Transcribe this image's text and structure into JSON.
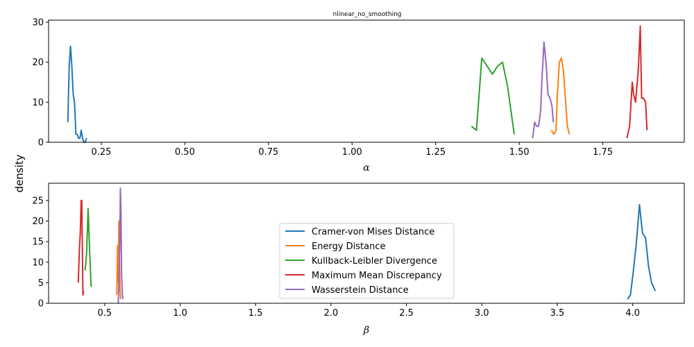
{
  "figure": {
    "title": "nlinear_no_smoothing",
    "ylabel": "density"
  },
  "colors": {
    "Cramer-von Mises Distance": "#1f77b4",
    "Energy Distance": "#ff7f0e",
    "Kullback-Leibler Divergence": "#2ca02c",
    "Maximum Mean Discrepancy": "#d62728",
    "Wasserstein Distance": "#9467bd"
  },
  "legend": {
    "placement": "lower-center of bottom panel",
    "entries": [
      "Cramer-von Mises Distance",
      "Energy Distance",
      "Kullback-Leibler Divergence",
      "Maximum Mean Discrepancy",
      "Wasserstein Distance"
    ]
  },
  "chart_data": [
    {
      "type": "line",
      "xlabel": "α",
      "ylabel": "density",
      "xlim": [
        0.0924,
        1.9936
      ],
      "ylim": [
        0,
        30.5
      ],
      "xticks": [
        0.25,
        0.5,
        0.75,
        1.0,
        1.25,
        1.5,
        1.75
      ],
      "xtick_labels": [
        "0.25",
        "0.50",
        "0.75",
        "1.00",
        "1.25",
        "1.50",
        "1.75"
      ],
      "yticks": [
        0,
        10,
        20,
        30
      ],
      "ytick_labels": [
        "0",
        "10",
        "20",
        "30"
      ],
      "grid": false,
      "series": [
        {
          "name": "Cramer-von Mises Distance",
          "x": [
            0.15,
            0.154,
            0.158,
            0.162,
            0.166,
            0.17,
            0.174,
            0.178,
            0.182,
            0.186,
            0.19,
            0.194,
            0.198,
            0.202,
            0.206
          ],
          "y": [
            5,
            19,
            24,
            19,
            12,
            10,
            2,
            2,
            1,
            1,
            3,
            1,
            0,
            0,
            1
          ]
        },
        {
          "name": "Energy Distance",
          "x": [
            1.596,
            1.604,
            1.61,
            1.614,
            1.62,
            1.626,
            1.632,
            1.638,
            1.644,
            1.65
          ],
          "y": [
            3,
            2,
            3,
            12,
            20,
            21,
            18,
            11,
            4,
            2
          ]
        },
        {
          "name": "Kullback-Leibler Divergence",
          "x": [
            1.357,
            1.372,
            1.388,
            1.404,
            1.42,
            1.435,
            1.45,
            1.465,
            1.485
          ],
          "y": [
            4,
            3,
            21,
            19,
            17,
            19,
            20,
            14,
            2
          ]
        },
        {
          "name": "Maximum Mean Discrepancy",
          "x": [
            1.822,
            1.83,
            1.838,
            1.842,
            1.848,
            1.852,
            1.856,
            1.862,
            1.866,
            1.872,
            1.878,
            1.882
          ],
          "y": [
            1,
            4,
            15,
            12,
            10,
            14,
            18,
            29,
            11,
            11,
            10,
            3
          ]
        },
        {
          "name": "Wasserstein Distance",
          "x": [
            1.54,
            1.546,
            1.552,
            1.558,
            1.564,
            1.568,
            1.574,
            1.58,
            1.586,
            1.592,
            1.598,
            1.602
          ],
          "y": [
            1,
            5,
            4,
            4,
            8,
            16,
            25,
            20,
            12,
            11,
            9,
            5
          ]
        }
      ]
    },
    {
      "type": "line",
      "xlabel": "β",
      "ylabel": "density",
      "xlim": [
        0.128,
        4.342
      ],
      "ylim": [
        0,
        29.2
      ],
      "xticks": [
        0.5,
        1.0,
        1.5,
        2.0,
        2.5,
        3.0,
        3.5,
        4.0
      ],
      "xtick_labels": [
        "0.5",
        "1.0",
        "1.5",
        "2.0",
        "2.5",
        "3.0",
        "3.5",
        "4.0"
      ],
      "yticks": [
        0,
        5,
        10,
        15,
        20,
        25
      ],
      "ytick_labels": [
        "0",
        "5",
        "10",
        "15",
        "20",
        "25"
      ],
      "grid": false,
      "series": [
        {
          "name": "Cramer-von Mises Distance",
          "x": [
            3.965,
            3.985,
            4.005,
            4.025,
            4.045,
            4.065,
            4.085,
            4.105,
            4.125,
            4.15
          ],
          "y": [
            1,
            2,
            8,
            15,
            24,
            17,
            16,
            9,
            5,
            3
          ]
        },
        {
          "name": "Energy Distance",
          "x": [
            0.58,
            0.585,
            0.59,
            0.594,
            0.598,
            0.602,
            0.606
          ],
          "y": [
            2,
            14,
            5,
            20,
            10,
            3,
            1
          ]
        },
        {
          "name": "Kullback-Leibler Divergence",
          "x": [
            0.37,
            0.38,
            0.39,
            0.4,
            0.41
          ],
          "y": [
            8,
            12,
            23,
            13,
            4
          ]
        },
        {
          "name": "Maximum Mean Discrepancy",
          "x": [
            0.325,
            0.332,
            0.338,
            0.344,
            0.348,
            0.352,
            0.356,
            0.36
          ],
          "y": [
            5,
            13,
            17,
            25,
            25,
            13,
            2,
            3
          ]
        },
        {
          "name": "Wasserstein Distance",
          "x": [
            0.59,
            0.596,
            0.6,
            0.604,
            0.608,
            0.612,
            0.616,
            0.62
          ],
          "y": [
            0,
            8,
            14,
            28,
            22,
            7,
            3,
            1
          ]
        }
      ]
    }
  ]
}
